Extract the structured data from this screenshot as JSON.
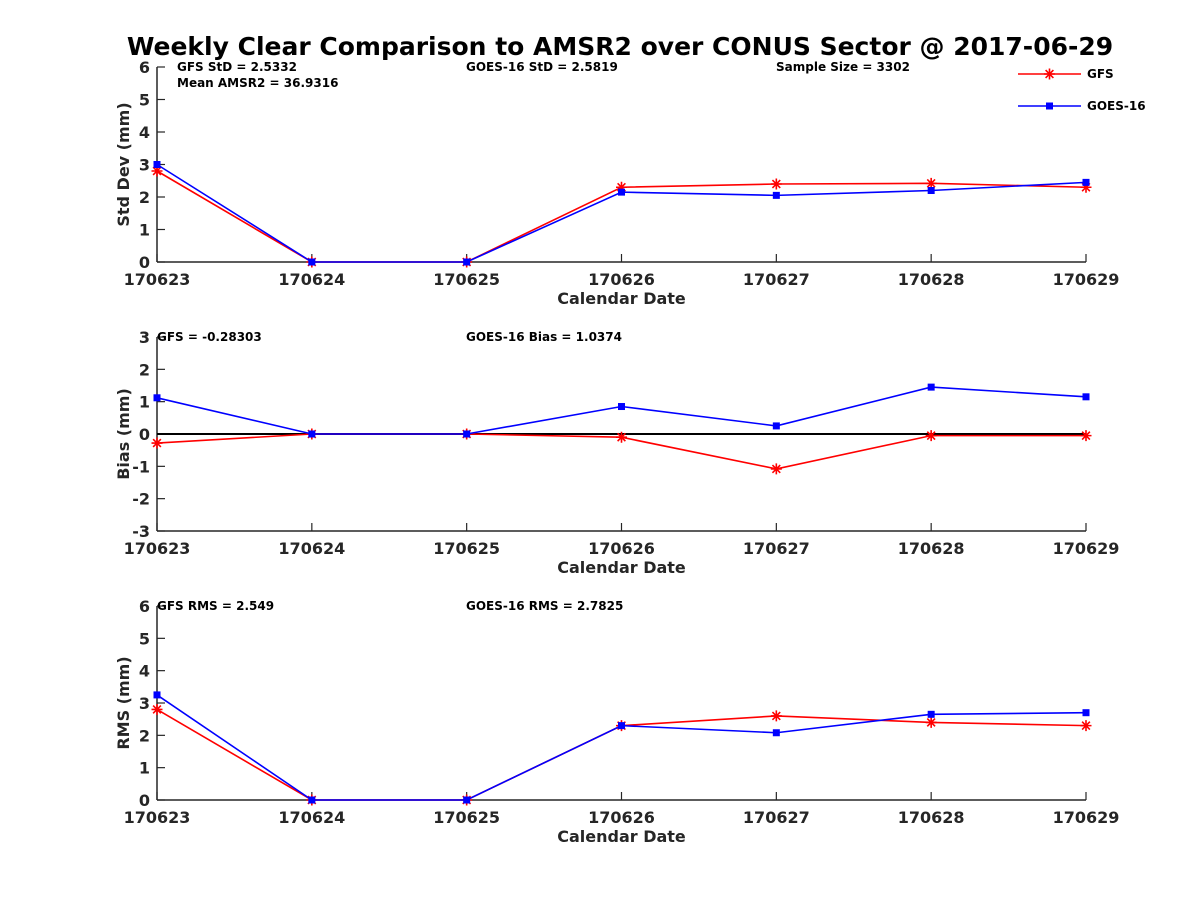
{
  "title": "Weekly Clear Comparison to AMSR2 over CONUS Sector @ 2017-06-29",
  "colors": {
    "gfs": "#ff0000",
    "goes": "#0000ff",
    "axis": "#262626",
    "zero_line": "#000000"
  },
  "legend": [
    {
      "name": "GFS",
      "color": "#ff0000",
      "marker": "star"
    },
    {
      "name": "GOES-16",
      "color": "#0000ff",
      "marker": "square"
    }
  ],
  "chart_data": [
    {
      "type": "line",
      "xlabel": "Calendar Date",
      "ylabel": "Std Dev (mm)",
      "ylim": [
        0,
        6
      ],
      "yticks": [
        0,
        1,
        2,
        3,
        4,
        5,
        6
      ],
      "categories": [
        "170623",
        "170624",
        "170625",
        "170626",
        "170627",
        "170628",
        "170629"
      ],
      "zero_line": false,
      "annotations": [
        {
          "text": "GFS StD = 2.5332",
          "slot": "left-line1"
        },
        {
          "text": "Mean AMSR2 = 36.9316",
          "slot": "left-line2"
        },
        {
          "text": "GOES-16 StD = 2.5819",
          "slot": "middle"
        },
        {
          "text": "Sample Size = 3302",
          "slot": "right"
        }
      ],
      "series": [
        {
          "name": "GFS",
          "values": [
            2.8,
            0.0,
            0.0,
            2.3,
            2.4,
            2.42,
            2.3
          ]
        },
        {
          "name": "GOES-16",
          "values": [
            3.0,
            0.0,
            0.0,
            2.15,
            2.05,
            2.2,
            2.45
          ]
        }
      ]
    },
    {
      "type": "line",
      "xlabel": "Calendar Date",
      "ylabel": "Bias (mm)",
      "ylim": [
        -3,
        3
      ],
      "yticks": [
        -3,
        -2,
        -1,
        0,
        1,
        2,
        3
      ],
      "categories": [
        "170623",
        "170624",
        "170625",
        "170626",
        "170627",
        "170628",
        "170629"
      ],
      "zero_line": true,
      "annotations": [
        {
          "text": "GFS = -0.28303",
          "slot": "left-line1"
        },
        {
          "text": "GOES-16 Bias  = 1.0374",
          "slot": "middle"
        }
      ],
      "series": [
        {
          "name": "GFS",
          "values": [
            -0.28,
            0.0,
            0.0,
            -0.1,
            -1.08,
            -0.05,
            -0.05
          ]
        },
        {
          "name": "GOES-16",
          "values": [
            1.12,
            0.0,
            0.0,
            0.85,
            0.25,
            1.45,
            1.15
          ]
        }
      ]
    },
    {
      "type": "line",
      "xlabel": "Calendar Date",
      "ylabel": "RMS (mm)",
      "ylim": [
        0,
        6
      ],
      "yticks": [
        0,
        1,
        2,
        3,
        4,
        5,
        6
      ],
      "categories": [
        "170623",
        "170624",
        "170625",
        "170626",
        "170627",
        "170628",
        "170629"
      ],
      "zero_line": false,
      "annotations": [
        {
          "text": "GFS RMS = 2.549",
          "slot": "left-line1"
        },
        {
          "text": "GOES-16 RMS = 2.7825",
          "slot": "middle"
        }
      ],
      "series": [
        {
          "name": "GFS",
          "values": [
            2.8,
            0.0,
            0.0,
            2.3,
            2.6,
            2.4,
            2.3
          ]
        },
        {
          "name": "GOES-16",
          "values": [
            3.25,
            0.0,
            0.0,
            2.3,
            2.08,
            2.65,
            2.7
          ]
        }
      ]
    }
  ]
}
